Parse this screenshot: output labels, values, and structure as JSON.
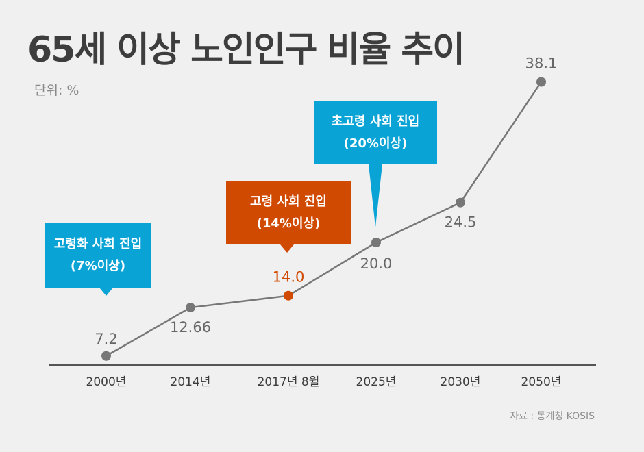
{
  "page": {
    "title": "65세 이상 노인인구 비율 추이",
    "unit": "단위: %",
    "source": "자료 : 통계청 KOSIS"
  },
  "colors": {
    "background": "#f0f0f0",
    "line": "#777777",
    "point": "#777777",
    "highlight": "#d04a02",
    "callout_blue": "#0aa3d6",
    "callout_orange": "#d04a02",
    "axis": "#555555",
    "label": "#666666"
  },
  "callouts": [
    {
      "line1": "고령화 사회 진입",
      "line2": "(7%이상)",
      "color": "#0aa3d6"
    },
    {
      "line1": "고령 사회 진입",
      "line2": "(14%이상)",
      "color": "#d04a02"
    },
    {
      "line1": "초고령 사회 진입",
      "line2": "(20%이상)",
      "color": "#0aa3d6"
    }
  ],
  "chart_data": {
    "type": "line",
    "categories": [
      "2000년",
      "2014년",
      "2017년 8월",
      "2025년",
      "2030년",
      "2050년"
    ],
    "values": [
      7.2,
      12.66,
      14.0,
      20.0,
      24.5,
      38.1
    ],
    "value_labels": [
      "7.2",
      "12.66",
      "14.0",
      "20.0",
      "24.5",
      "38.1"
    ],
    "highlight_index": 2,
    "title": "65세 이상 노인인구 비율 추이",
    "xlabel": "",
    "ylabel": "",
    "ylim": [
      0,
      40
    ],
    "grid": false,
    "legend": "none"
  }
}
